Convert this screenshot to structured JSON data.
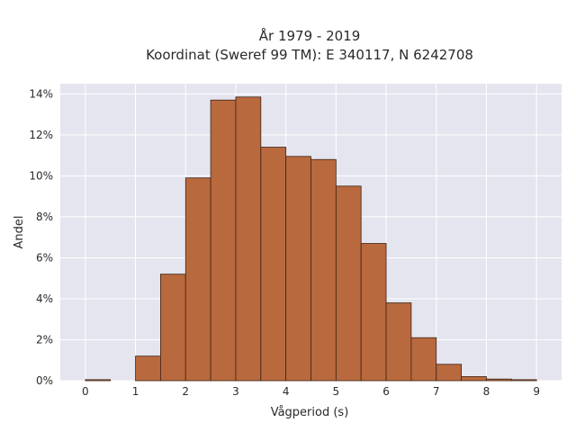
{
  "chart_data": {
    "type": "bar",
    "title_line1": "År 1979 - 2019",
    "title_line2": "Koordinat (Sweref 99 TM): E 340117, N 6242708",
    "xlabel": "Vågperiod (s)",
    "ylabel": "Andel",
    "xlim": [
      -0.5,
      9.5
    ],
    "ylim": [
      0,
      14.5
    ],
    "bin_width": 0.5,
    "bins_start": [
      0.0,
      1.0,
      1.5,
      2.0,
      2.5,
      3.0,
      3.5,
      4.0,
      4.5,
      5.0,
      5.5,
      6.0,
      6.5,
      7.0,
      7.5,
      8.0,
      8.5
    ],
    "values": [
      0.05,
      1.2,
      5.2,
      9.9,
      13.7,
      13.85,
      11.4,
      10.95,
      10.8,
      9.5,
      6.7,
      3.8,
      2.1,
      0.8,
      0.2,
      0.08,
      0.05
    ],
    "x_ticks": [
      "0",
      "1",
      "2",
      "3",
      "4",
      "5",
      "6",
      "7",
      "8",
      "9"
    ],
    "y_ticks": [
      "0%",
      "2%",
      "4%",
      "6%",
      "8%",
      "10%",
      "12%",
      "14%"
    ],
    "grid": true,
    "colors": {
      "bar_fill": "#b9693e",
      "bar_edge": "#3b2414",
      "plot_bg": "#e5e5ef",
      "grid": "#ffffff"
    }
  }
}
